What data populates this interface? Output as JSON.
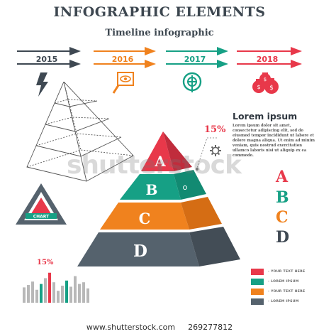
{
  "header": {
    "title": "INFOGRAPHIC ELEMENTS",
    "subtitle": "Timeline infographic"
  },
  "timeline": [
    {
      "year": "2015",
      "color": "#3e4852",
      "icon": "lightning-icon"
    },
    {
      "year": "2016",
      "color": "#f0821e",
      "icon": "eye-magnifier-icon"
    },
    {
      "year": "2017",
      "color": "#16a085",
      "icon": "target-icon"
    },
    {
      "year": "2018",
      "color": "#e8384a",
      "icon": "money-bags-icon"
    }
  ],
  "pyramid": {
    "levels": [
      {
        "letter": "A",
        "color": "#e8384a"
      },
      {
        "letter": "B",
        "color": "#16a085"
      },
      {
        "letter": "C",
        "color": "#f0821e"
      },
      {
        "letter": "D",
        "color": "#55626d"
      }
    ],
    "percent_label": "15%"
  },
  "lorem": {
    "title": "Lorem ipsum",
    "body": "Lorem ipsum dolor sit amet, consectetur adipiscing elit, sed do eiusmod tempor incididunt ut labore et dolore magna aliqua. Ut enim ad minim veniam, quis nostrud exercitation ullamco laboris nisi ut aliquip ex ea commodo."
  },
  "side_letters": [
    {
      "letter": "A",
      "color": "#e8384a"
    },
    {
      "letter": "B",
      "color": "#16a085"
    },
    {
      "letter": "C",
      "color": "#f0821e"
    },
    {
      "letter": "D",
      "color": "#3e4852"
    }
  ],
  "badge": {
    "text": "CHART"
  },
  "bar_chart": {
    "label": "15%",
    "values": [
      0.45,
      0.52,
      0.62,
      0.38,
      0.55,
      0.72,
      0.88,
      0.6,
      0.35,
      0.5,
      0.65,
      0.47,
      0.78,
      0.55,
      0.6,
      0.42
    ],
    "highlight_index": 6
  },
  "legend": [
    {
      "label": "- YOUR TEXT HERE",
      "color": "#e8384a"
    },
    {
      "label": "- LOREM IPSUM",
      "color": "#16a085"
    },
    {
      "label": "- YOUR TEXT HERE",
      "color": "#f0821e"
    },
    {
      "label": "- LOREM IPSUM",
      "color": "#55626d"
    }
  ],
  "footer": {
    "site": "www.shutterstock.com",
    "id": "269277812"
  },
  "watermark": "shutterstock"
}
